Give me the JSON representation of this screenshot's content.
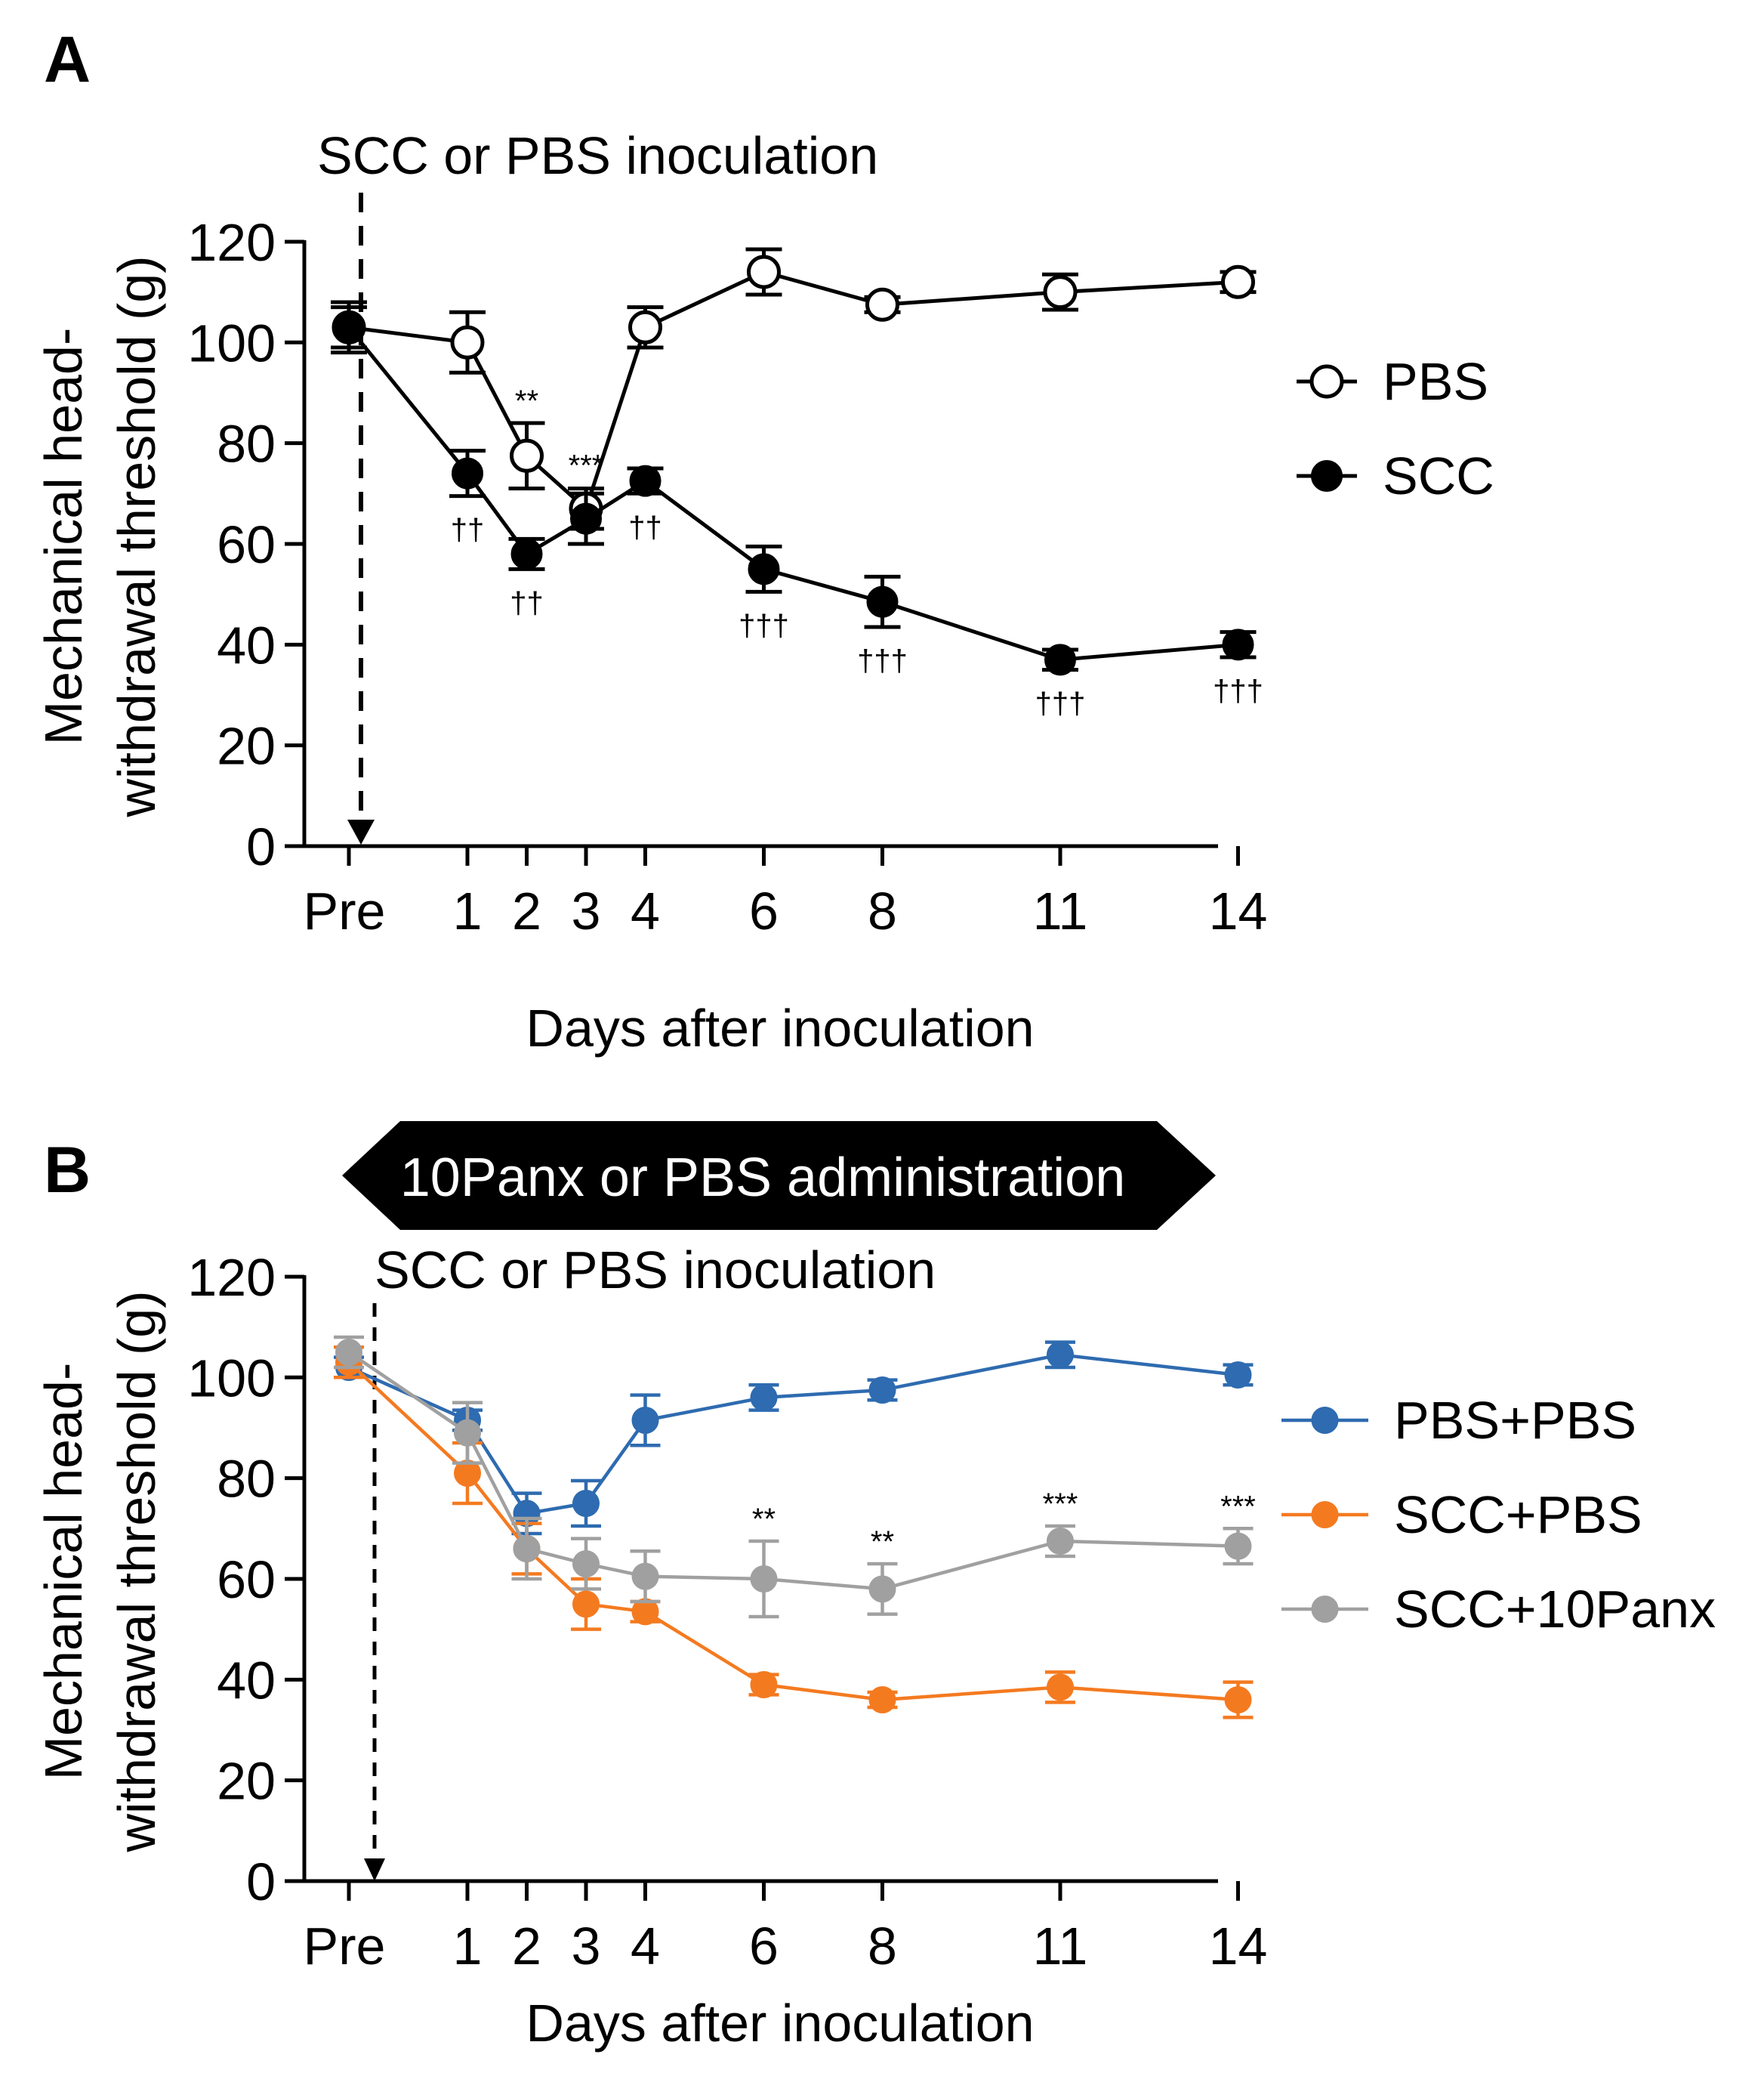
{
  "chart_data": [
    {
      "panel": "A",
      "type": "line",
      "annotation": "SCC or PBS inoculation",
      "xlabel": "Days after inoculation",
      "ylabel_lines": [
        "Mechanical head-",
        "withdrawal threshold (g)"
      ],
      "ylim": [
        0,
        120
      ],
      "yticks": [
        "0",
        "20",
        "40",
        "60",
        "80",
        "100",
        "120"
      ],
      "categories": [
        "Pre",
        "1",
        "2",
        "3",
        "4",
        "6",
        "8",
        "11",
        "14"
      ],
      "x": [
        -1,
        1,
        2,
        3,
        4,
        6,
        8,
        11,
        14
      ],
      "legend_position": "right",
      "series": [
        {
          "name": "PBS",
          "color": "#000000",
          "marker": "open-circle",
          "values": [
            103,
            100,
            77.5,
            67,
            103,
            114,
            107.5,
            110,
            112
          ],
          "errors": [
            5,
            6,
            6.5,
            4,
            4,
            4.5,
            1.5,
            3.5,
            2
          ]
        },
        {
          "name": "SCC",
          "color": "#000000",
          "marker": "filled-circle",
          "values": [
            103,
            74,
            58,
            65,
            72.5,
            55,
            48.5,
            37,
            40
          ],
          "errors": [
            4,
            4.5,
            3,
            5,
            2.5,
            4.5,
            5,
            2,
            2.5
          ]
        }
      ],
      "significance": [
        {
          "x": 2,
          "series": "PBS",
          "text": "**",
          "place": "above"
        },
        {
          "x": 3,
          "series": "PBS",
          "text": "***",
          "place": "above"
        },
        {
          "x": 1,
          "series": "SCC",
          "text": "††",
          "place": "below"
        },
        {
          "x": 2,
          "series": "SCC",
          "text": "††",
          "place": "below"
        },
        {
          "x": 4,
          "series": "SCC",
          "text": "††",
          "place": "below"
        },
        {
          "x": 6,
          "series": "SCC",
          "text": "†††",
          "place": "below"
        },
        {
          "x": 8,
          "series": "SCC",
          "text": "†††",
          "place": "below"
        },
        {
          "x": 11,
          "series": "SCC",
          "text": "†††",
          "place": "below"
        },
        {
          "x": 14,
          "series": "SCC",
          "text": "†††",
          "place": "below"
        }
      ]
    },
    {
      "panel": "B",
      "type": "line",
      "banner": "10Panx or PBS administration",
      "annotation": "SCC or PBS inoculation",
      "xlabel": "Days after inoculation",
      "ylabel_lines": [
        "Mechanical head-",
        "withdrawal threshold (g)"
      ],
      "ylim": [
        0,
        120
      ],
      "yticks": [
        "0",
        "20",
        "40",
        "60",
        "80",
        "100",
        "120"
      ],
      "categories": [
        "Pre",
        "1",
        "2",
        "3",
        "4",
        "6",
        "8",
        "11",
        "14"
      ],
      "x": [
        -1,
        1,
        2,
        3,
        4,
        6,
        8,
        11,
        14
      ],
      "legend_position": "right",
      "series": [
        {
          "name": "PBS+PBS",
          "color": "#2e6bb0",
          "marker": "filled-circle",
          "values": [
            102,
            91.5,
            73,
            75,
            91.5,
            96,
            97.5,
            104.5,
            100.5
          ],
          "errors": [
            2,
            2,
            4,
            4.5,
            5,
            2.5,
            2,
            2.5,
            2
          ]
        },
        {
          "name": "SCC+PBS",
          "color": "#f47a20",
          "marker": "filled-circle",
          "values": [
            103,
            81,
            66,
            55,
            53.5,
            39,
            36,
            38.5,
            36
          ],
          "errors": [
            3,
            6,
            5,
            5,
            2,
            2,
            1.5,
            3,
            3.5
          ]
        },
        {
          "name": "SCC+10Panx",
          "color": "#a0a0a0",
          "marker": "filled-circle",
          "values": [
            105,
            89,
            66,
            63,
            60.5,
            60,
            58,
            67.5,
            66.5
          ],
          "errors": [
            3,
            6,
            6,
            5,
            5,
            7.5,
            5,
            3,
            3.5
          ]
        }
      ],
      "significance": [
        {
          "x": 6,
          "series": "SCC+10Panx",
          "text": "**",
          "place": "above"
        },
        {
          "x": 8,
          "series": "SCC+10Panx",
          "text": "**",
          "place": "above"
        },
        {
          "x": 11,
          "series": "SCC+10Panx",
          "text": "***",
          "place": "above"
        },
        {
          "x": 14,
          "series": "SCC+10Panx",
          "text": "***",
          "place": "above"
        }
      ]
    }
  ]
}
